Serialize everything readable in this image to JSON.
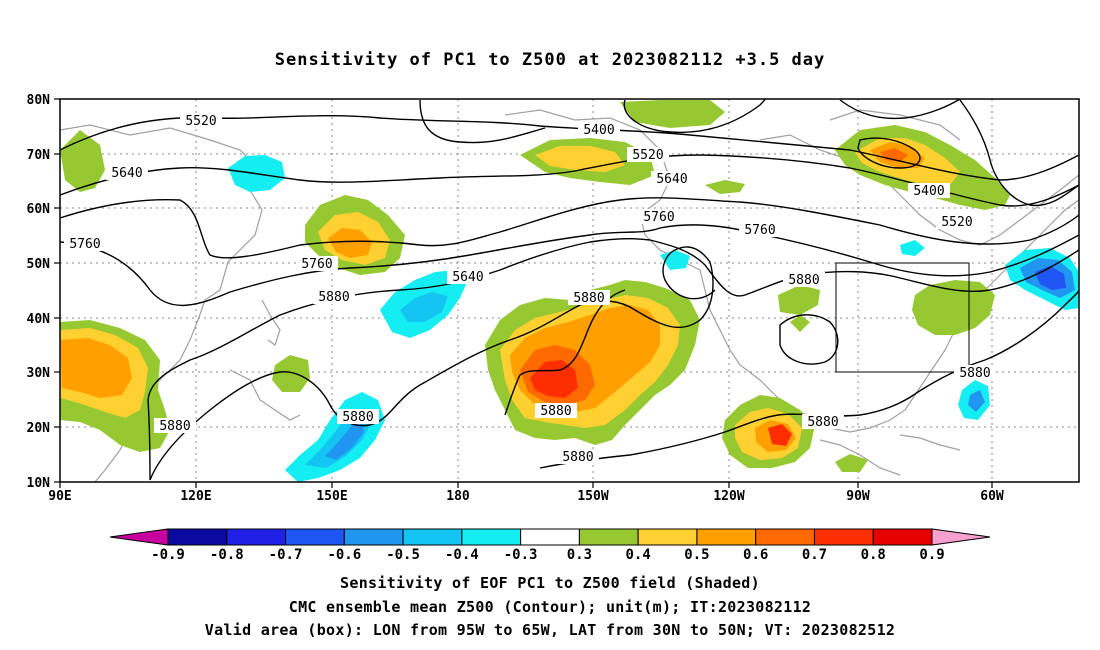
{
  "title": "Sensitivity of PC1 to Z500 at 2023082112 +3.5 day",
  "map": {
    "lat_ticks": [
      "80N",
      "70N",
      "60N",
      "50N",
      "40N",
      "30N",
      "20N",
      "10N"
    ],
    "lon_ticks": [
      "90E",
      "120E",
      "150E",
      "180",
      "150W",
      "120W",
      "90W",
      "60W"
    ],
    "contour_labels": [
      "5520",
      "5400",
      "5520",
      "5640",
      "5640",
      "5760",
      "5760",
      "5760",
      "5640",
      "5760",
      "5400",
      "5520",
      "5880",
      "5880",
      "5880",
      "5880",
      "5880",
      "5880",
      "5880",
      "5880",
      "5880"
    ],
    "valid_box": {
      "lon": [
        "95W",
        "65W"
      ],
      "lat": [
        "30N",
        "50N"
      ]
    }
  },
  "colorbar": {
    "ticks": [
      "-0.9",
      "-0.8",
      "-0.7",
      "-0.6",
      "-0.5",
      "-0.4",
      "-0.3",
      "0.3",
      "0.4",
      "0.5",
      "0.6",
      "0.7",
      "0.8",
      "0.9"
    ],
    "colors": [
      "#c8009e",
      "#0a0aa0",
      "#1f22e6",
      "#1f55f0",
      "#2196f0",
      "#14c4f2",
      "#14eef2",
      "#ffffff",
      "#96c832",
      "#ffd030",
      "#ffa000",
      "#ff6a00",
      "#ff2e00",
      "#e60000",
      "#f8a0d0"
    ]
  },
  "caption": {
    "line1": "Sensitivity of EOF PC1 to Z500 field (Shaded)",
    "line2": "CMC ensemble mean Z500 (Contour); unit(m); IT:2023082112",
    "line3": "Valid area (box): LON from 95W to 65W, LAT from 30N to 50N; VT: 2023082512"
  }
}
